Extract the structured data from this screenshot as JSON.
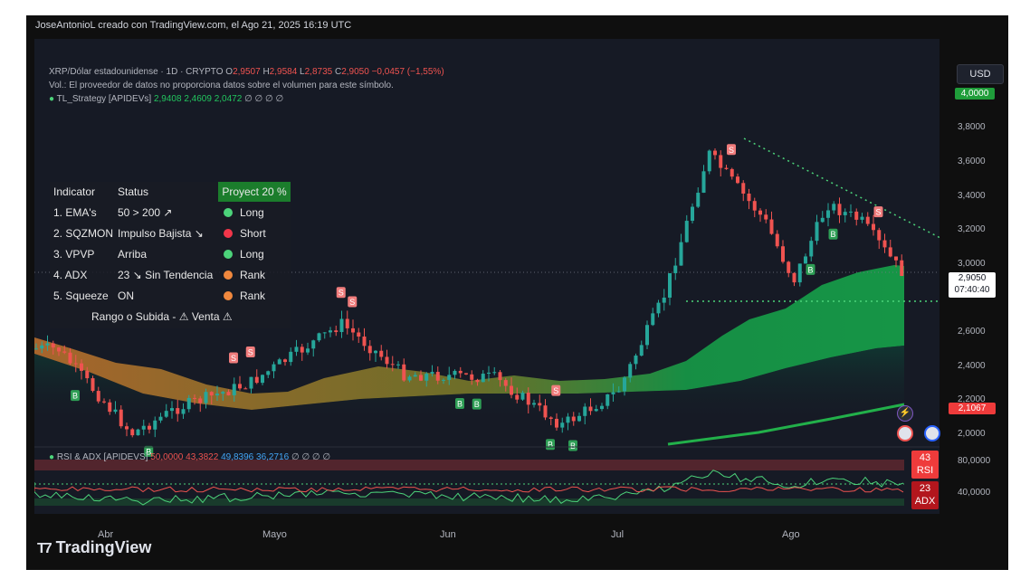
{
  "header": {
    "credit": "JoseAntonioL creado con TradingView.com, el Ago 21, 2025 16:19 UTC",
    "symbol": "XRP/Dólar estadounidense · 1D · CRYPTO",
    "o_label": "O",
    "o_value": "2,9507",
    "h_label": "H",
    "h_value": "2,9584",
    "l_label": "L",
    "l_value": "2,8735",
    "c_label": "C",
    "c_value": "2,9050",
    "change": "−0,0457 (−1,55%)",
    "vol_note": "Vol.: El proveedor de datos no proporciona datos sobre el volumen para este símbolo.",
    "strategy_name": "TL_Strategy [APIDEVs]",
    "strategy_v1": "2,9408",
    "strategy_v2": "2,4609",
    "strategy_v3": "2,0472",
    "strategy_rest": "∅ ∅ ∅ ∅"
  },
  "table": {
    "headers": [
      "Indicator",
      "Status",
      "Proyect 20 %"
    ],
    "rows": [
      {
        "name": "1. EMA's",
        "status": "50 > 200 ↗",
        "signal": "Long",
        "color": "#4cd37a"
      },
      {
        "name": "2. SQZMON",
        "status": "Impulso Bajista ↘",
        "signal": "Short",
        "color": "#f2364a"
      },
      {
        "name": "3. VPVP",
        "status": "Arriba",
        "signal": "Long",
        "color": "#4cd37a"
      },
      {
        "name": "4. ADX",
        "status": "23 ↘ Sin Tendencia",
        "signal": "Rank",
        "color": "#f0883e"
      },
      {
        "name": "5. Squeeze",
        "status": "ON",
        "signal": "Rank",
        "color": "#f0883e"
      }
    ],
    "footer": "Rango o Subida - ⚠ Venta ⚠"
  },
  "price_axis": {
    "currency_button": "USD",
    "labels": [
      "3,8000",
      "3,6000",
      "3,4000",
      "3,2000",
      "3,0000",
      "2,6000",
      "2,4000",
      "2,2000",
      "2,0000"
    ],
    "top_tag": "4,0000",
    "last_price": "2,9050",
    "countdown": "07:40:40",
    "lower_tag": "2,1067"
  },
  "rsi_panel": {
    "name": "RSI & ADX [APIDEVS]",
    "v1": "50,0000",
    "v2": "43,3822",
    "v3": "49,8396",
    "v4": "36,2716",
    "rest": "∅ ∅ ∅ ∅",
    "axis_labels": [
      "80,0000",
      "40,0000"
    ],
    "rsi_tag_value": "43",
    "rsi_tag_label": "RSI",
    "adx_tag_value": "23",
    "adx_tag_label": "ADX"
  },
  "x_axis": [
    "Abr",
    "Mayo",
    "Jun",
    "Jul",
    "Ago"
  ],
  "brand": "TradingView",
  "colors": {
    "up": "#26a69a",
    "down": "#ef5350",
    "band_green": "#16a34a",
    "band_orange": "#c2722d",
    "background": "#161a25"
  },
  "chart_data": {
    "type": "candlestick",
    "title": "XRP/Dólar estadounidense · 1D · CRYPTO",
    "ylim": [
      1.8,
      4.0
    ],
    "x": [
      "Abr",
      "Mayo",
      "Jun",
      "Jul",
      "Ago"
    ],
    "last_close": 2.905,
    "approx_path": [
      {
        "date": "Mar 25",
        "price": 2.45
      },
      {
        "date": "Abr 07",
        "price": 1.95
      },
      {
        "date": "Abr 15",
        "price": 2.1
      },
      {
        "date": "Abr 28",
        "price": 2.25
      },
      {
        "date": "May 12",
        "price": 2.55
      },
      {
        "date": "May 14",
        "price": 2.6
      },
      {
        "date": "May 25",
        "price": 2.3
      },
      {
        "date": "Jun 10",
        "price": 2.28
      },
      {
        "date": "Jun 22",
        "price": 2.0
      },
      {
        "date": "Jul 02",
        "price": 2.2
      },
      {
        "date": "Jul 10",
        "price": 2.75
      },
      {
        "date": "Jul 18",
        "price": 3.6
      },
      {
        "date": "Jul 28",
        "price": 3.2
      },
      {
        "date": "Ago 02",
        "price": 2.85
      },
      {
        "date": "Ago 08",
        "price": 3.3
      },
      {
        "date": "Ago 14",
        "price": 3.2
      },
      {
        "date": "Ago 21",
        "price": 2.905
      }
    ],
    "signals": {
      "buy": [
        "Mar 28",
        "Abr 10",
        "Jun 04",
        "Jun 07",
        "Jun 20",
        "Jun 24",
        "Ago 05",
        "Ago 09"
      ],
      "sell": [
        "Abr 25",
        "Abr 28",
        "May 14",
        "May 16",
        "Jun 21",
        "Jul 22",
        "Ago 17"
      ]
    }
  }
}
